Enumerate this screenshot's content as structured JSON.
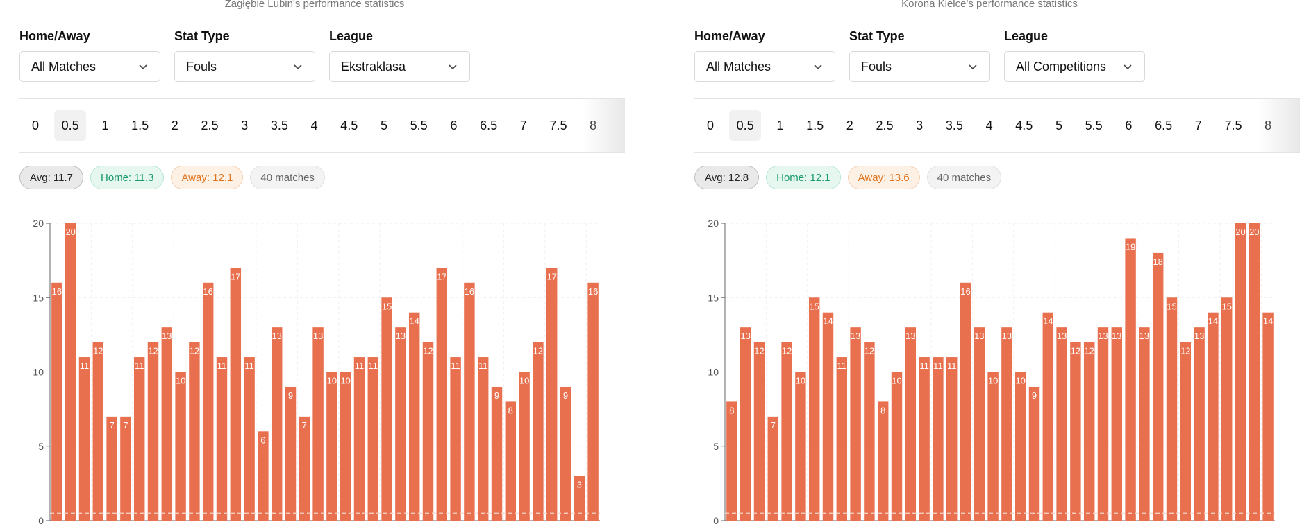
{
  "panels": [
    {
      "subtitle": "Zagłębie Lubin's performance statistics",
      "filters": [
        {
          "label": "Home/Away",
          "value": "All Matches"
        },
        {
          "label": "Stat Type",
          "value": "Fouls"
        },
        {
          "label": "League",
          "value": "Ekstraklasa"
        }
      ],
      "lines": [
        "0",
        "0.5",
        "1",
        "1.5",
        "2",
        "2.5",
        "3",
        "3.5",
        "4",
        "4.5",
        "5",
        "5.5",
        "6",
        "6.5",
        "7",
        "7.5",
        "8",
        "8"
      ],
      "selected_line": "0.5",
      "stats": {
        "avg": "Avg: 11.7",
        "home": "Home: 11.3",
        "away": "Away: 12.1",
        "matches": "40 matches"
      },
      "chart_data": {
        "type": "bar",
        "values": [
          16,
          20,
          11,
          12,
          7,
          7,
          11,
          12,
          13,
          10,
          12,
          16,
          11,
          17,
          11,
          6,
          13,
          9,
          7,
          13,
          10,
          10,
          11,
          11,
          15,
          13,
          14,
          12,
          17,
          11,
          16,
          11,
          9,
          8,
          10,
          12,
          17,
          9,
          3,
          16
        ],
        "ylim": [
          0,
          20
        ],
        "yticks": [
          0,
          5,
          10,
          15,
          20
        ],
        "threshold_line": 0.5,
        "bar_color": "#e8704f",
        "grid": true
      }
    },
    {
      "subtitle": "Korona Kielce's performance statistics",
      "filters": [
        {
          "label": "Home/Away",
          "value": "All Matches"
        },
        {
          "label": "Stat Type",
          "value": "Fouls"
        },
        {
          "label": "League",
          "value": "All Competitions"
        }
      ],
      "lines": [
        "0",
        "0.5",
        "1",
        "1.5",
        "2",
        "2.5",
        "3",
        "3.5",
        "4",
        "4.5",
        "5",
        "5.5",
        "6",
        "6.5",
        "7",
        "7.5",
        "8",
        "8"
      ],
      "selected_line": "0.5",
      "stats": {
        "avg": "Avg: 12.8",
        "home": "Home: 12.1",
        "away": "Away: 13.6",
        "matches": "40 matches"
      },
      "chart_data": {
        "type": "bar",
        "values": [
          8,
          13,
          12,
          7,
          12,
          10,
          15,
          14,
          11,
          13,
          12,
          8,
          10,
          13,
          11,
          11,
          11,
          16,
          13,
          10,
          13,
          10,
          9,
          14,
          13,
          12,
          12,
          13,
          13,
          19,
          13,
          18,
          15,
          12,
          13,
          14,
          15,
          20,
          20,
          14
        ],
        "ylim": [
          0,
          20
        ],
        "yticks": [
          0,
          5,
          10,
          15,
          20
        ],
        "threshold_line": 0.5,
        "bar_color": "#e8704f",
        "grid": true
      }
    }
  ]
}
